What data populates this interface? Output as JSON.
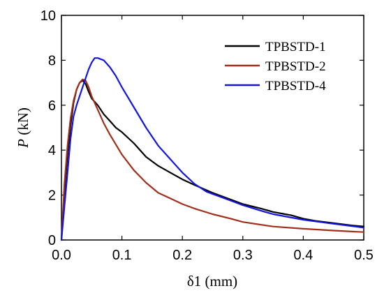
{
  "chart_data": {
    "type": "line",
    "title": "",
    "xlabel": "δ1 (mm)",
    "ylabel_symbol": "P",
    "ylabel_unit": " (kN)",
    "xlim": [
      0,
      0.5
    ],
    "ylim": [
      0,
      10
    ],
    "xticks": [
      0.0,
      0.1,
      0.2,
      0.3,
      0.4,
      0.5
    ],
    "xtick_labels": [
      "0.0",
      "0.1",
      "0.2",
      "0.3",
      "0.4",
      "0.5"
    ],
    "yticks": [
      0,
      2,
      4,
      6,
      8,
      10
    ],
    "ytick_labels": [
      "0",
      "2",
      "4",
      "6",
      "8",
      "10"
    ],
    "grid": false,
    "legend_position": "top-right",
    "series": [
      {
        "name": "TPBSTD-1",
        "color": "#000000",
        "x": [
          0,
          0.005,
          0.01,
          0.015,
          0.02,
          0.025,
          0.03,
          0.035,
          0.04,
          0.045,
          0.05,
          0.06,
          0.07,
          0.08,
          0.09,
          0.1,
          0.12,
          0.14,
          0.16,
          0.18,
          0.2,
          0.22,
          0.25,
          0.28,
          0.3,
          0.33,
          0.35,
          0.37,
          0.38,
          0.4,
          0.42,
          0.45,
          0.48,
          0.5
        ],
        "y": [
          0,
          2.2,
          3.8,
          5.1,
          6.1,
          6.7,
          7.0,
          7.1,
          6.95,
          6.6,
          6.3,
          6.0,
          5.6,
          5.3,
          5.0,
          4.8,
          4.3,
          3.7,
          3.3,
          3.0,
          2.7,
          2.45,
          2.1,
          1.8,
          1.6,
          1.4,
          1.25,
          1.15,
          1.1,
          0.95,
          0.85,
          0.75,
          0.65,
          0.6
        ]
      },
      {
        "name": "TPBSTD-2",
        "color": "#a0301c",
        "x": [
          0,
          0.005,
          0.01,
          0.015,
          0.02,
          0.025,
          0.03,
          0.035,
          0.04,
          0.045,
          0.05,
          0.06,
          0.07,
          0.08,
          0.1,
          0.12,
          0.14,
          0.16,
          0.18,
          0.2,
          0.22,
          0.25,
          0.28,
          0.3,
          0.35,
          0.4,
          0.45,
          0.5
        ],
        "y": [
          0,
          2.5,
          4.2,
          5.4,
          6.2,
          6.7,
          7.0,
          7.15,
          7.1,
          6.8,
          6.4,
          5.8,
          5.2,
          4.7,
          3.8,
          3.1,
          2.55,
          2.1,
          1.85,
          1.6,
          1.4,
          1.15,
          0.95,
          0.8,
          0.6,
          0.5,
          0.42,
          0.35
        ]
      },
      {
        "name": "TPBSTD-4",
        "color": "#1515e0",
        "x": [
          0,
          0.005,
          0.01,
          0.015,
          0.02,
          0.025,
          0.03,
          0.035,
          0.04,
          0.045,
          0.05,
          0.055,
          0.06,
          0.065,
          0.07,
          0.08,
          0.09,
          0.1,
          0.12,
          0.14,
          0.16,
          0.18,
          0.2,
          0.22,
          0.24,
          0.26,
          0.28,
          0.3,
          0.33,
          0.35,
          0.4,
          0.45,
          0.5
        ],
        "y": [
          0,
          1.5,
          3.0,
          4.5,
          5.5,
          6.0,
          6.4,
          6.8,
          7.2,
          7.6,
          7.9,
          8.1,
          8.1,
          8.05,
          8.0,
          7.7,
          7.3,
          6.8,
          5.9,
          5.0,
          4.2,
          3.6,
          3.0,
          2.5,
          2.15,
          1.95,
          1.75,
          1.55,
          1.3,
          1.15,
          0.9,
          0.72,
          0.55
        ]
      }
    ]
  }
}
